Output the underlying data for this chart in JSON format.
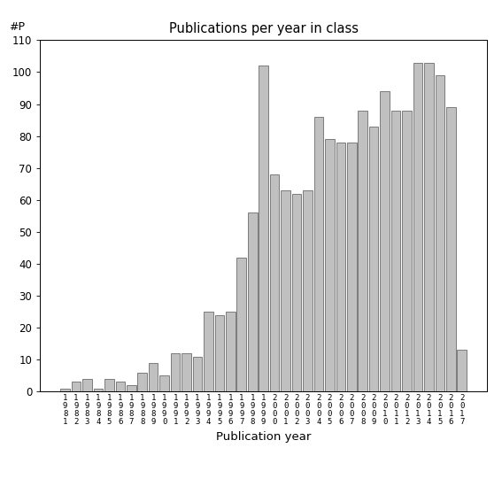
{
  "title": "Publications per year in class",
  "xlabel": "Publication year",
  "ylabel": "#P",
  "ylim": [
    0,
    110
  ],
  "yticks": [
    0,
    10,
    20,
    30,
    40,
    50,
    60,
    70,
    80,
    90,
    100,
    110
  ],
  "bar_color": "#c0c0c0",
  "bar_edgecolor": "#555555",
  "years": [
    1981,
    1982,
    1983,
    1984,
    1985,
    1986,
    1987,
    1988,
    1989,
    1990,
    1991,
    1992,
    1993,
    1994,
    1995,
    1996,
    1997,
    1998,
    1999,
    2000,
    2001,
    2002,
    2003,
    2004,
    2005,
    2006,
    2007,
    2008,
    2009,
    2010,
    2011,
    2012,
    2013,
    2014,
    2015,
    2016,
    2017
  ],
  "values": [
    1,
    3,
    4,
    1,
    4,
    3,
    2,
    6,
    9,
    5,
    12,
    12,
    11,
    25,
    24,
    25,
    42,
    56,
    102,
    68,
    63,
    62,
    63,
    86,
    79,
    78,
    78,
    88,
    83,
    94,
    88,
    88,
    103,
    103,
    99,
    89,
    13
  ]
}
